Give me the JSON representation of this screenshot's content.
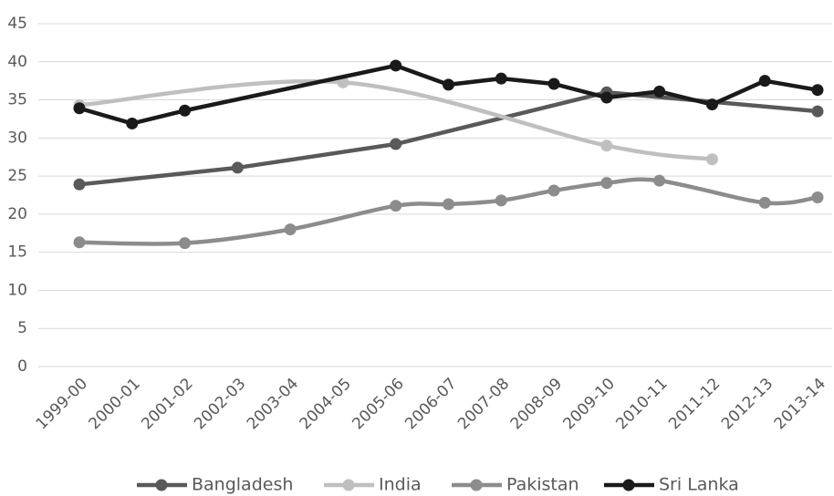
{
  "chart_data": {
    "type": "line",
    "categories": [
      "1999-00",
      "2000-01",
      "2001-02",
      "2002-03",
      "2003-04",
      "2004-05",
      "2005-06",
      "2006-07",
      "2007-08",
      "2008-09",
      "2009-10",
      "2010-11",
      "2011-12",
      "2012-13",
      "2013-14"
    ],
    "ylim": [
      0,
      45
    ],
    "yticks": [
      0,
      5,
      10,
      15,
      20,
      25,
      30,
      35,
      40,
      45
    ],
    "grid": true,
    "legend": "bottom",
    "series": [
      {
        "name": "Bangladesh",
        "color": "#595959",
        "smooth": false,
        "x": [
          "1999-00",
          "2002-03",
          "2005-06",
          "2009-10",
          "2013-14"
        ],
        "values": [
          23.9,
          26.1,
          29.2,
          36.0,
          33.5
        ]
      },
      {
        "name": "India",
        "color": "#bfbfbf",
        "smooth": true,
        "x": [
          "1999-00",
          "2004-05",
          "2009-10",
          "2011-12"
        ],
        "values": [
          34.3,
          37.3,
          29.0,
          27.2
        ]
      },
      {
        "name": "Pakistan",
        "color": "#8c8c8c",
        "smooth": true,
        "x": [
          "1999-00",
          "2001-02",
          "2003-04",
          "2005-06",
          "2006-07",
          "2007-08",
          "2008-09",
          "2009-10",
          "2010-11",
          "2012-13",
          "2013-14"
        ],
        "values": [
          16.3,
          16.2,
          18.0,
          21.1,
          21.3,
          21.8,
          23.1,
          24.1,
          24.4,
          21.5,
          22.2
        ]
      },
      {
        "name": "Sri Lanka",
        "color": "#1a1a1a",
        "smooth": false,
        "x": [
          "1999-00",
          "2000-01",
          "2001-02",
          "2005-06",
          "2006-07",
          "2007-08",
          "2008-09",
          "2009-10",
          "2010-11",
          "2011-12",
          "2012-13",
          "2013-14"
        ],
        "values": [
          33.9,
          31.9,
          33.6,
          39.5,
          37.0,
          37.8,
          37.1,
          35.3,
          36.1,
          34.4,
          37.5,
          36.3
        ]
      }
    ]
  }
}
